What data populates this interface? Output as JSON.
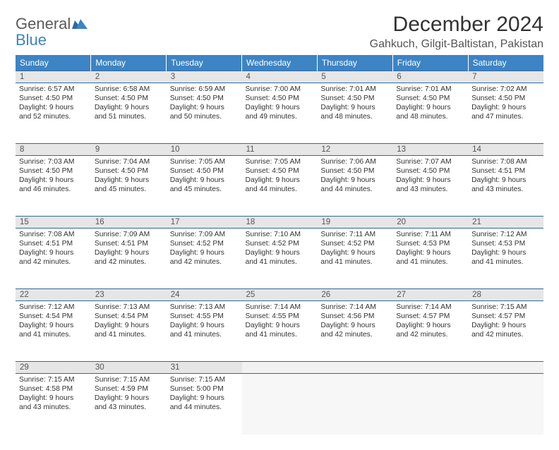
{
  "brand": {
    "general": "General",
    "blue": "Blue"
  },
  "title": "December 2024",
  "location": "Gahkuch, Gilgit-Baltistan, Pakistan",
  "colors": {
    "header_bg": "#3d84c4",
    "header_fg": "#ffffff",
    "row_divider": "#2f6aa0",
    "daynum_bg": "#e6e6e6",
    "empty_bg": "#f7f7f7",
    "text": "#333333"
  },
  "day_headers": [
    "Sunday",
    "Monday",
    "Tuesday",
    "Wednesday",
    "Thursday",
    "Friday",
    "Saturday"
  ],
  "weeks": [
    [
      {
        "n": "1",
        "sunrise": "Sunrise: 6:57 AM",
        "sunset": "Sunset: 4:50 PM",
        "daylight": "Daylight: 9 hours and 52 minutes."
      },
      {
        "n": "2",
        "sunrise": "Sunrise: 6:58 AM",
        "sunset": "Sunset: 4:50 PM",
        "daylight": "Daylight: 9 hours and 51 minutes."
      },
      {
        "n": "3",
        "sunrise": "Sunrise: 6:59 AM",
        "sunset": "Sunset: 4:50 PM",
        "daylight": "Daylight: 9 hours and 50 minutes."
      },
      {
        "n": "4",
        "sunrise": "Sunrise: 7:00 AM",
        "sunset": "Sunset: 4:50 PM",
        "daylight": "Daylight: 9 hours and 49 minutes."
      },
      {
        "n": "5",
        "sunrise": "Sunrise: 7:01 AM",
        "sunset": "Sunset: 4:50 PM",
        "daylight": "Daylight: 9 hours and 48 minutes."
      },
      {
        "n": "6",
        "sunrise": "Sunrise: 7:01 AM",
        "sunset": "Sunset: 4:50 PM",
        "daylight": "Daylight: 9 hours and 48 minutes."
      },
      {
        "n": "7",
        "sunrise": "Sunrise: 7:02 AM",
        "sunset": "Sunset: 4:50 PM",
        "daylight": "Daylight: 9 hours and 47 minutes."
      }
    ],
    [
      {
        "n": "8",
        "sunrise": "Sunrise: 7:03 AM",
        "sunset": "Sunset: 4:50 PM",
        "daylight": "Daylight: 9 hours and 46 minutes."
      },
      {
        "n": "9",
        "sunrise": "Sunrise: 7:04 AM",
        "sunset": "Sunset: 4:50 PM",
        "daylight": "Daylight: 9 hours and 45 minutes."
      },
      {
        "n": "10",
        "sunrise": "Sunrise: 7:05 AM",
        "sunset": "Sunset: 4:50 PM",
        "daylight": "Daylight: 9 hours and 45 minutes."
      },
      {
        "n": "11",
        "sunrise": "Sunrise: 7:05 AM",
        "sunset": "Sunset: 4:50 PM",
        "daylight": "Daylight: 9 hours and 44 minutes."
      },
      {
        "n": "12",
        "sunrise": "Sunrise: 7:06 AM",
        "sunset": "Sunset: 4:50 PM",
        "daylight": "Daylight: 9 hours and 44 minutes."
      },
      {
        "n": "13",
        "sunrise": "Sunrise: 7:07 AM",
        "sunset": "Sunset: 4:50 PM",
        "daylight": "Daylight: 9 hours and 43 minutes."
      },
      {
        "n": "14",
        "sunrise": "Sunrise: 7:08 AM",
        "sunset": "Sunset: 4:51 PM",
        "daylight": "Daylight: 9 hours and 43 minutes."
      }
    ],
    [
      {
        "n": "15",
        "sunrise": "Sunrise: 7:08 AM",
        "sunset": "Sunset: 4:51 PM",
        "daylight": "Daylight: 9 hours and 42 minutes."
      },
      {
        "n": "16",
        "sunrise": "Sunrise: 7:09 AM",
        "sunset": "Sunset: 4:51 PM",
        "daylight": "Daylight: 9 hours and 42 minutes."
      },
      {
        "n": "17",
        "sunrise": "Sunrise: 7:09 AM",
        "sunset": "Sunset: 4:52 PM",
        "daylight": "Daylight: 9 hours and 42 minutes."
      },
      {
        "n": "18",
        "sunrise": "Sunrise: 7:10 AM",
        "sunset": "Sunset: 4:52 PM",
        "daylight": "Daylight: 9 hours and 41 minutes."
      },
      {
        "n": "19",
        "sunrise": "Sunrise: 7:11 AM",
        "sunset": "Sunset: 4:52 PM",
        "daylight": "Daylight: 9 hours and 41 minutes."
      },
      {
        "n": "20",
        "sunrise": "Sunrise: 7:11 AM",
        "sunset": "Sunset: 4:53 PM",
        "daylight": "Daylight: 9 hours and 41 minutes."
      },
      {
        "n": "21",
        "sunrise": "Sunrise: 7:12 AM",
        "sunset": "Sunset: 4:53 PM",
        "daylight": "Daylight: 9 hours and 41 minutes."
      }
    ],
    [
      {
        "n": "22",
        "sunrise": "Sunrise: 7:12 AM",
        "sunset": "Sunset: 4:54 PM",
        "daylight": "Daylight: 9 hours and 41 minutes."
      },
      {
        "n": "23",
        "sunrise": "Sunrise: 7:13 AM",
        "sunset": "Sunset: 4:54 PM",
        "daylight": "Daylight: 9 hours and 41 minutes."
      },
      {
        "n": "24",
        "sunrise": "Sunrise: 7:13 AM",
        "sunset": "Sunset: 4:55 PM",
        "daylight": "Daylight: 9 hours and 41 minutes."
      },
      {
        "n": "25",
        "sunrise": "Sunrise: 7:14 AM",
        "sunset": "Sunset: 4:55 PM",
        "daylight": "Daylight: 9 hours and 41 minutes."
      },
      {
        "n": "26",
        "sunrise": "Sunrise: 7:14 AM",
        "sunset": "Sunset: 4:56 PM",
        "daylight": "Daylight: 9 hours and 42 minutes."
      },
      {
        "n": "27",
        "sunrise": "Sunrise: 7:14 AM",
        "sunset": "Sunset: 4:57 PM",
        "daylight": "Daylight: 9 hours and 42 minutes."
      },
      {
        "n": "28",
        "sunrise": "Sunrise: 7:15 AM",
        "sunset": "Sunset: 4:57 PM",
        "daylight": "Daylight: 9 hours and 42 minutes."
      }
    ],
    [
      {
        "n": "29",
        "sunrise": "Sunrise: 7:15 AM",
        "sunset": "Sunset: 4:58 PM",
        "daylight": "Daylight: 9 hours and 43 minutes."
      },
      {
        "n": "30",
        "sunrise": "Sunrise: 7:15 AM",
        "sunset": "Sunset: 4:59 PM",
        "daylight": "Daylight: 9 hours and 43 minutes."
      },
      {
        "n": "31",
        "sunrise": "Sunrise: 7:15 AM",
        "sunset": "Sunset: 5:00 PM",
        "daylight": "Daylight: 9 hours and 44 minutes."
      },
      null,
      null,
      null,
      null
    ]
  ]
}
